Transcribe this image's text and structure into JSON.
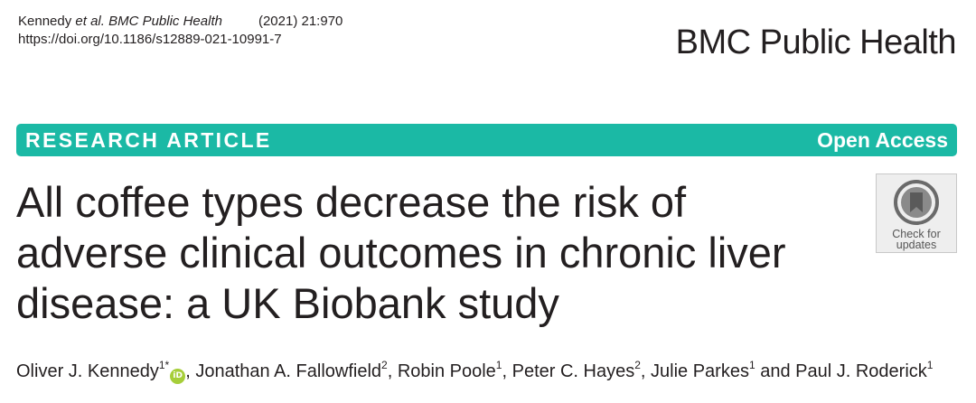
{
  "citation": {
    "authors_prefix": "Kennedy ",
    "etal_journal": "et al. BMC Public Health",
    "year_volume": "(2021) 21:970",
    "doi": "https://doi.org/10.1186/s12889-021-10991-7"
  },
  "journal_name": "BMC Public Health",
  "banner": {
    "article_type": "RESEARCH ARTICLE",
    "access": "Open Access",
    "color": "#1bb9a5"
  },
  "title_lines": [
    "All coffee types decrease the risk of",
    "adverse clinical outcomes in chronic liver",
    "disease: a UK Biobank study"
  ],
  "check_updates": {
    "icon": "bookmark-icon",
    "line1": "Check for",
    "line2": "updates"
  },
  "authors": [
    {
      "name": "Oliver J. Kennedy",
      "sup": "1*",
      "orcid": "iD"
    },
    {
      "name": "Jonathan A. Fallowfield",
      "sup": "2"
    },
    {
      "name": "Robin Poole",
      "sup": "1"
    },
    {
      "name": "Peter C. Hayes",
      "sup": "2"
    },
    {
      "name": "Julie Parkes",
      "sup": "1"
    },
    {
      "name": "Paul J. Roderick",
      "sup": "1"
    }
  ],
  "authors_sep": ", ",
  "authors_and": " and "
}
